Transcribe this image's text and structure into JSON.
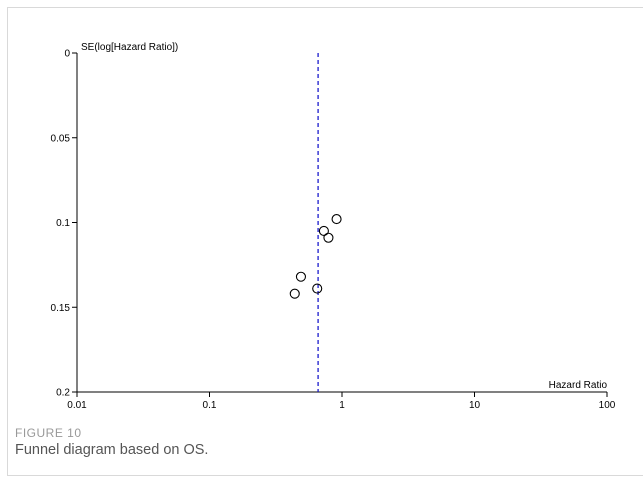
{
  "figure": {
    "label": "FIGURE 10",
    "caption": "Funnel diagram based on OS."
  },
  "chart_data": {
    "type": "scatter",
    "title": "",
    "xlabel": "Hazard Ratio",
    "ylabel": "SE(log[Hazard Ratio])",
    "x_scale": "log",
    "xlim": [
      0.01,
      100
    ],
    "x_ticks": [
      0.01,
      0.1,
      1,
      10,
      100
    ],
    "x_tick_labels": [
      "0.01",
      "0.1",
      "1",
      "10",
      "100"
    ],
    "y_reversed": true,
    "ylim": [
      0,
      0.2
    ],
    "y_ticks": [
      0,
      0.05,
      0.1,
      0.15,
      0.2
    ],
    "y_tick_labels": [
      "0",
      "0.05",
      "0.1",
      "0.15",
      "0.2"
    ],
    "grid": false,
    "pooled_estimate": 0.66,
    "points": [
      {
        "x": 0.91,
        "y": 0.098
      },
      {
        "x": 0.73,
        "y": 0.105
      },
      {
        "x": 0.79,
        "y": 0.109
      },
      {
        "x": 0.49,
        "y": 0.132
      },
      {
        "x": 0.65,
        "y": 0.139
      },
      {
        "x": 0.44,
        "y": 0.142
      }
    ],
    "colors": {
      "axis": "#000000",
      "marker": "#000000",
      "reference_line": "#1a1acd"
    }
  }
}
